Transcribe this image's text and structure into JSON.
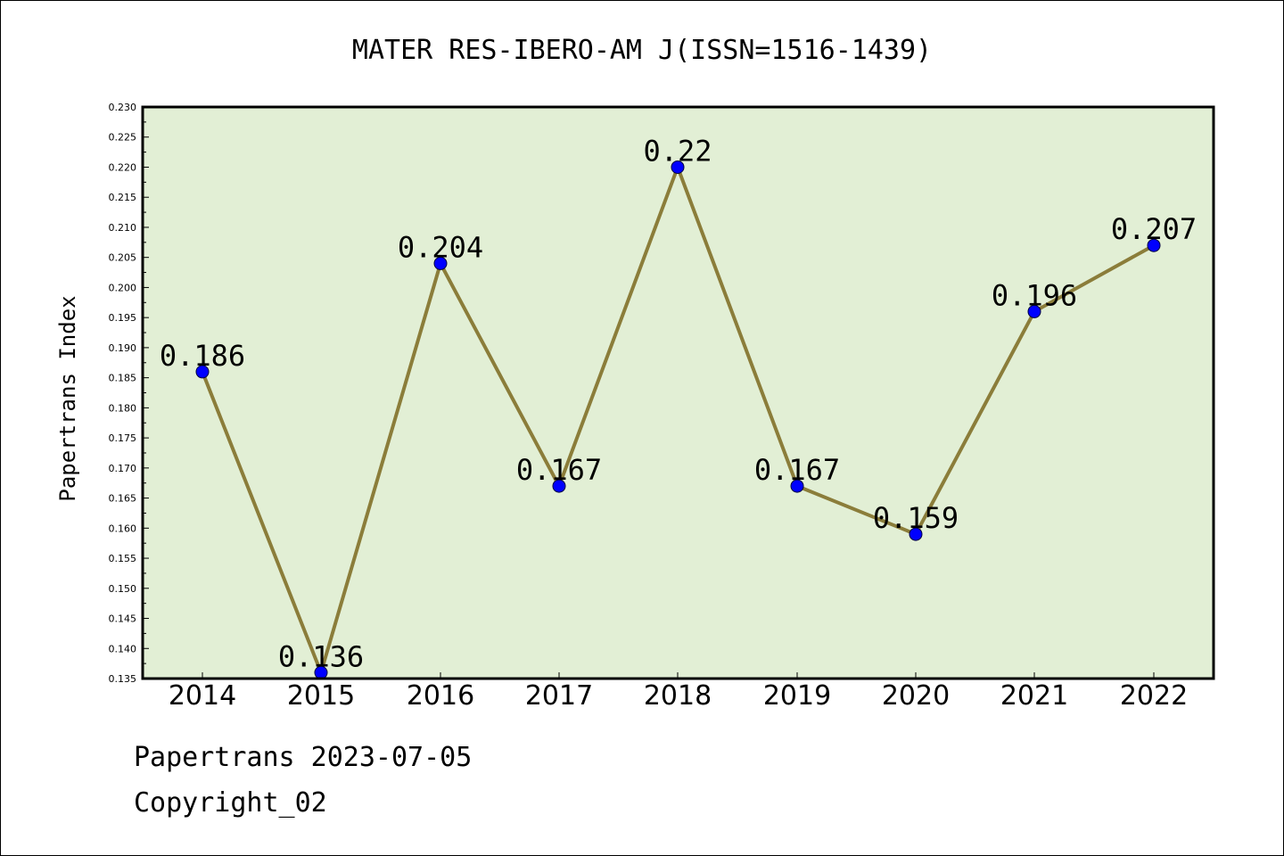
{
  "chart_data": {
    "type": "line",
    "title": "MATER RES-IBERO-AM J(ISSN=1516-1439)",
    "ylabel": "Papertrans Index",
    "xlabel": "",
    "categories": [
      "2014",
      "2015",
      "2016",
      "2017",
      "2018",
      "2019",
      "2020",
      "2021",
      "2022"
    ],
    "series": [
      {
        "values": [
          0.186,
          0.136,
          0.204,
          0.167,
          0.22,
          0.167,
          0.159,
          0.196,
          0.207
        ],
        "labels": [
          "0.186",
          "0.136",
          "0.204",
          "0.167",
          "0.22",
          "0.167",
          "0.159",
          "0.196",
          "0.207"
        ]
      }
    ],
    "ylim": [
      0.135,
      0.23
    ],
    "ytick_step": 0.005,
    "ytick_labels": [
      "0.135",
      "0.140",
      "0.145",
      "0.150",
      "0.155",
      "0.160",
      "0.165",
      "0.170",
      "0.175",
      "0.180",
      "0.185",
      "0.190",
      "0.195",
      "0.200",
      "0.205",
      "0.210",
      "0.215",
      "0.220",
      "0.225",
      "0.230"
    ],
    "grid": false,
    "colors": {
      "plot_background": "#e2efd5",
      "line": "#8b7d3a",
      "marker": "#0000ff"
    }
  },
  "footer": {
    "line1": "Papertrans 2023-07-05",
    "line2": "Copyright_02"
  }
}
